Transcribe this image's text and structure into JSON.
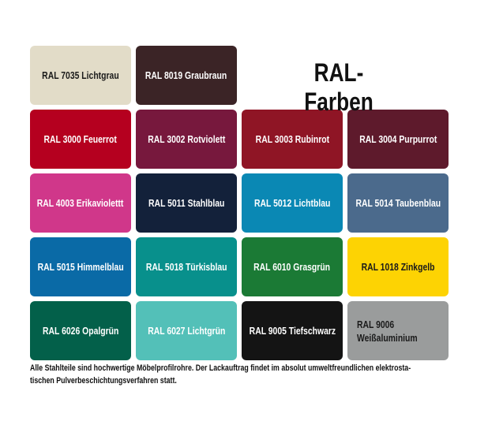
{
  "title": "RAL-Farben",
  "swatches": [
    {
      "label": "RAL 7035 Lichtgrau",
      "color": "#e2dcc8",
      "text_color": "#1a1a1a"
    },
    {
      "label": "RAL 8019 Graubraun",
      "color": "#3b2426",
      "text_color": "#ffffff"
    },
    null,
    null,
    {
      "label": "RAL 3000 Feuerrot",
      "color": "#b5001f",
      "text_color": "#ffffff"
    },
    {
      "label": "RAL 3002 Rotviolett",
      "color": "#77183d",
      "text_color": "#ffffff"
    },
    {
      "label": "RAL 3003 Rubinrot",
      "color": "#8f1525",
      "text_color": "#ffffff"
    },
    {
      "label": "RAL 3004 Purpurrot",
      "color": "#5e1a2c",
      "text_color": "#ffffff"
    },
    {
      "label": "RAL 4003 Erikaviolettt",
      "color": "#d0378a",
      "text_color": "#ffffff"
    },
    {
      "label": "RAL 5011 Stahlblau",
      "color": "#13213a",
      "text_color": "#ffffff"
    },
    {
      "label": "RAL 5012 Lichtblau",
      "color": "#0a88b4",
      "text_color": "#ffffff"
    },
    {
      "label": "RAL 5014 Taubenblau",
      "color": "#4b6a8c",
      "text_color": "#ffffff"
    },
    {
      "label": "RAL 5015 Himmelblau",
      "color": "#0a6aa6",
      "text_color": "#ffffff"
    },
    {
      "label": "RAL 5018 Türkisblau",
      "color": "#08908c",
      "text_color": "#ffffff"
    },
    {
      "label": "RAL 6010 Grasgrün",
      "color": "#1b7a35",
      "text_color": "#ffffff"
    },
    {
      "label": "RAL 1018 Zinkgelb",
      "color": "#fdd303",
      "text_color": "#1a1a1a"
    },
    {
      "label": "RAL 6026 Opalgrün",
      "color": "#03604a",
      "text_color": "#ffffff"
    },
    {
      "label": "RAL 6027 Lichtgrün",
      "color": "#53c0b8",
      "text_color": "#ffffff"
    },
    {
      "label": "RAL 9005 Tiefschwarz",
      "color": "#141414",
      "text_color": "#ffffff"
    },
    {
      "label": "RAL 9006\nWeißaluminium",
      "color": "#9a9c9c",
      "text_color": "#1a1a1a"
    }
  ],
  "note": "Alle Stahlteile sind hochwertige Möbelprofilrohre. Der Lackauftrag findet im absolut umweltfreundlichen elektrosta-\ntischen Pulverbeschichtungsverfahren statt."
}
